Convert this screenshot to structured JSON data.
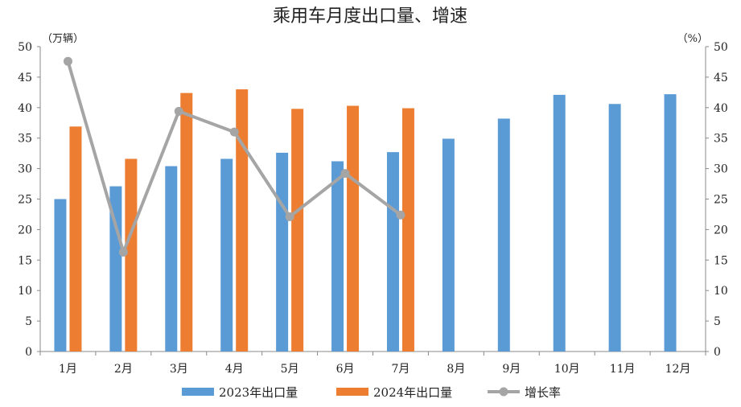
{
  "chart_data": {
    "type": "bar",
    "title": "乘用车月度出口量、增速",
    "left_unit": "（万辆）",
    "right_unit": "（%）",
    "categories": [
      "1月",
      "2月",
      "3月",
      "4月",
      "5月",
      "6月",
      "7月",
      "8月",
      "9月",
      "10月",
      "11月",
      "12月"
    ],
    "left_ylim": [
      0,
      50
    ],
    "right_ylim": [
      0,
      50
    ],
    "ticks": [
      0,
      5,
      10,
      15,
      20,
      25,
      30,
      35,
      40,
      45,
      50
    ],
    "grid": false,
    "legend_position": "bottom",
    "series": [
      {
        "name": "2023年出口量",
        "type": "bar",
        "axis": "left",
        "color": "#5b9bd5",
        "values": [
          25.0,
          27.1,
          30.4,
          31.6,
          32.6,
          31.2,
          32.7,
          34.9,
          38.2,
          42.1,
          40.6,
          42.2
        ]
      },
      {
        "name": "2024年出口量",
        "type": "bar",
        "axis": "left",
        "color": "#ed7d31",
        "values": [
          36.9,
          31.6,
          42.4,
          43.0,
          39.8,
          40.3,
          39.9,
          null,
          null,
          null,
          null,
          null
        ]
      },
      {
        "name": "增长率",
        "type": "line",
        "axis": "right",
        "color": "#a5a5a5",
        "values": [
          47.6,
          16.3,
          39.4,
          36.0,
          22.1,
          29.2,
          22.4,
          null,
          null,
          null,
          null,
          null
        ]
      }
    ]
  }
}
